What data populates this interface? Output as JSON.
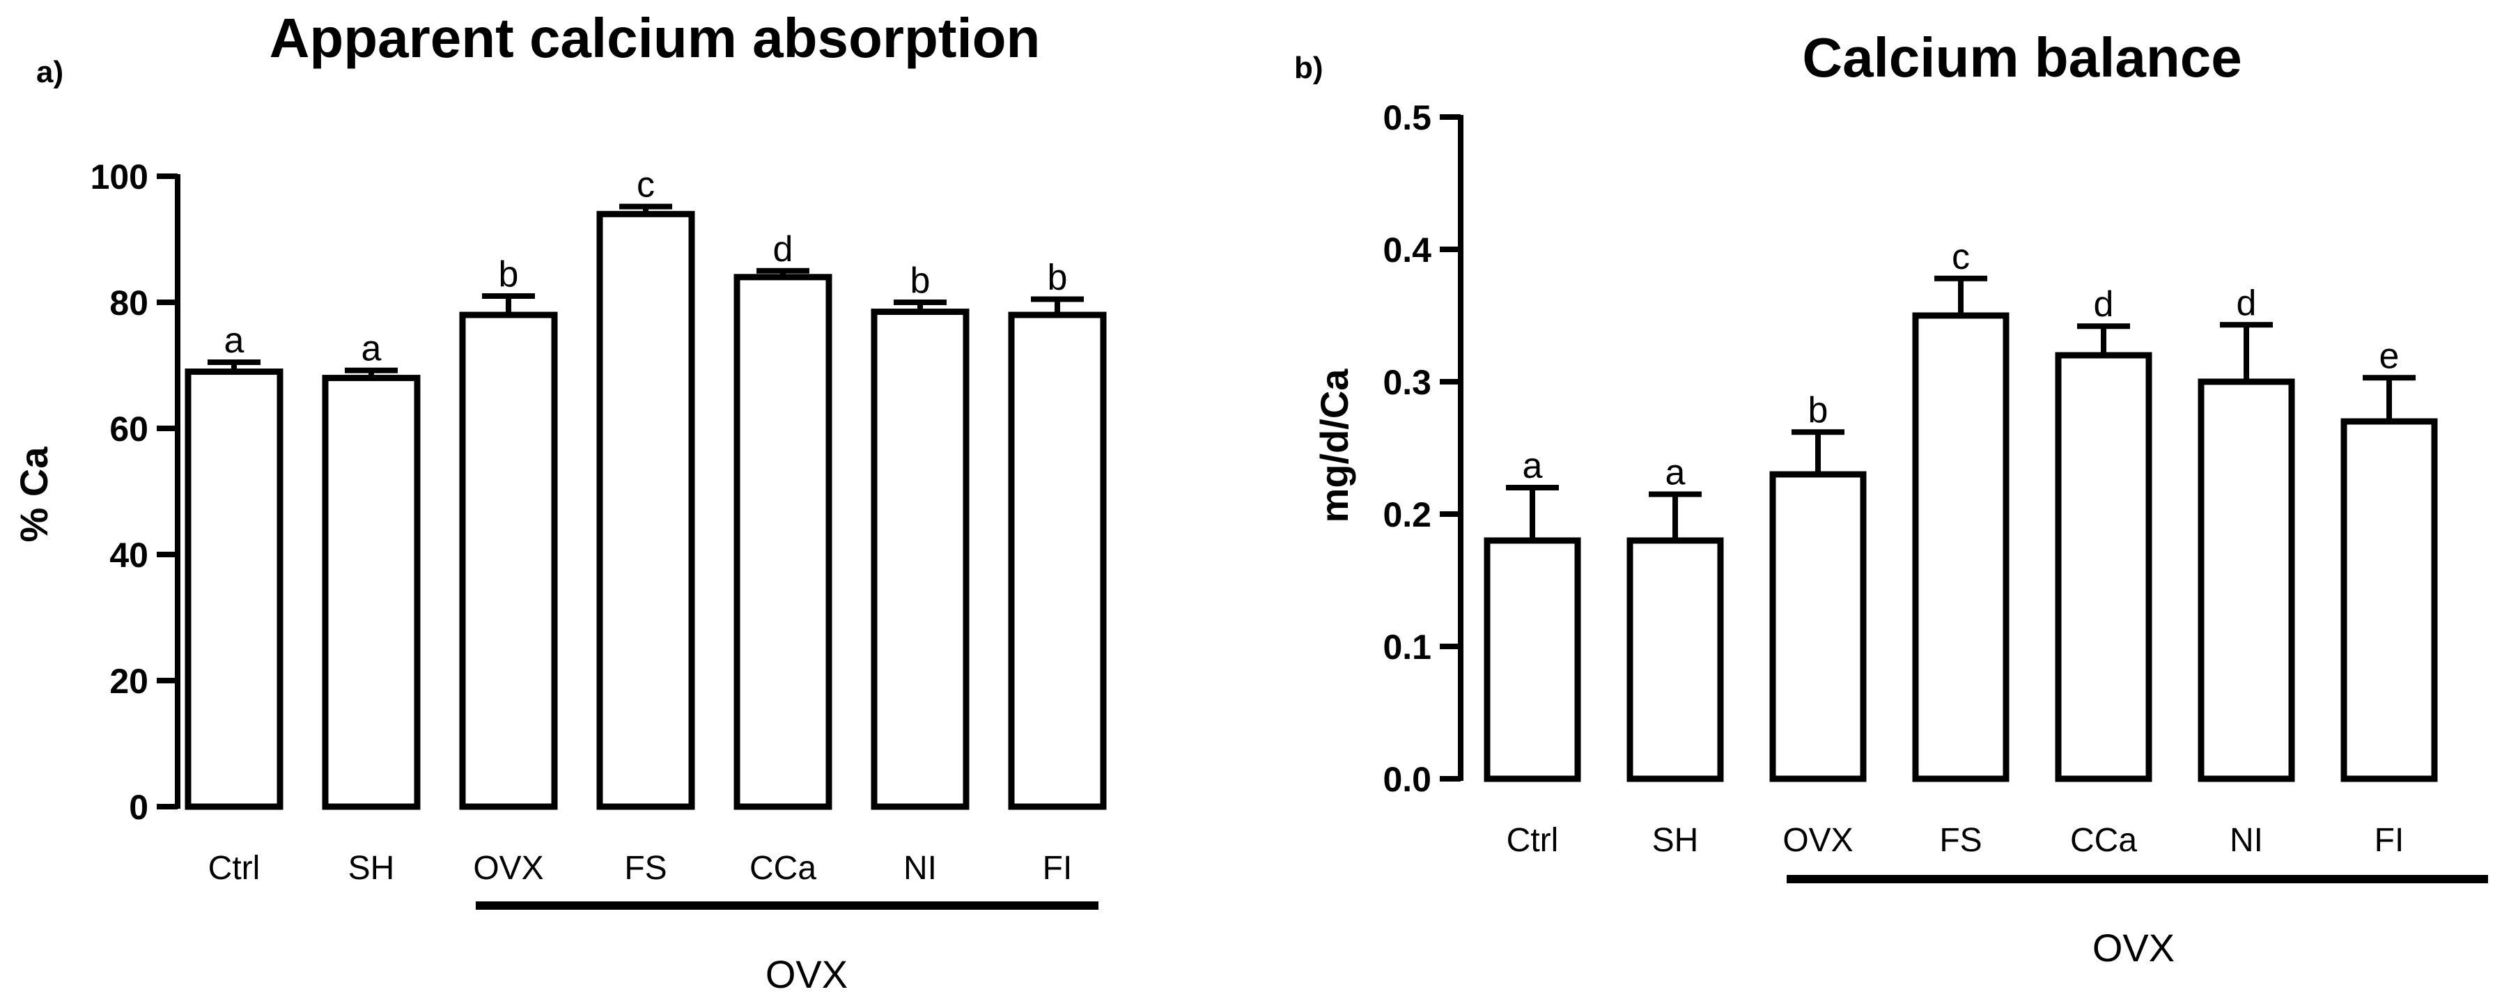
{
  "chart_data": [
    {
      "type": "bar",
      "panel_label": "a)",
      "title": "Apparent calcium absorption",
      "xlabel": "",
      "ylabel": "% Ca",
      "ylim": [
        0,
        100
      ],
      "yticks": [
        "0",
        "20",
        "40",
        "60",
        "80",
        "100"
      ],
      "ytick_values": [
        0,
        20,
        40,
        60,
        80,
        100
      ],
      "categories": [
        "Ctrl",
        "SH",
        "OVX",
        "FS",
        "CCa",
        "NI",
        "FI"
      ],
      "values": [
        69,
        68,
        78,
        94,
        84,
        78.5,
        78
      ],
      "errors": [
        1.5,
        1.2,
        3,
        1.2,
        1,
        1.5,
        2.5
      ],
      "significance": [
        "a",
        "a",
        "b",
        "c",
        "d",
        "b",
        "b"
      ],
      "group": {
        "label": "OVX",
        "from_index": 2,
        "to_index": 6
      }
    },
    {
      "type": "bar",
      "panel_label": "b)",
      "title": "Calcium balance",
      "xlabel": "",
      "ylabel": "mg/d/Ca",
      "ylim": [
        0,
        0.5
      ],
      "yticks": [
        "0.0",
        "0.1",
        "0.2",
        "0.3",
        "0.4",
        "0.5"
      ],
      "ytick_values": [
        0,
        0.1,
        0.2,
        0.3,
        0.4,
        0.5
      ],
      "categories": [
        "Ctrl",
        "SH",
        "OVX",
        "FS",
        "CCa",
        "NI",
        "FI"
      ],
      "values": [
        0.18,
        0.18,
        0.23,
        0.35,
        0.32,
        0.3,
        0.27
      ],
      "errors": [
        0.04,
        0.035,
        0.032,
        0.028,
        0.022,
        0.043,
        0.033
      ],
      "significance": [
        "a",
        "a",
        "b",
        "c",
        "d",
        "d",
        "e"
      ],
      "group": {
        "label": "OVX",
        "from_index": 2,
        "to_index": 6
      }
    }
  ]
}
